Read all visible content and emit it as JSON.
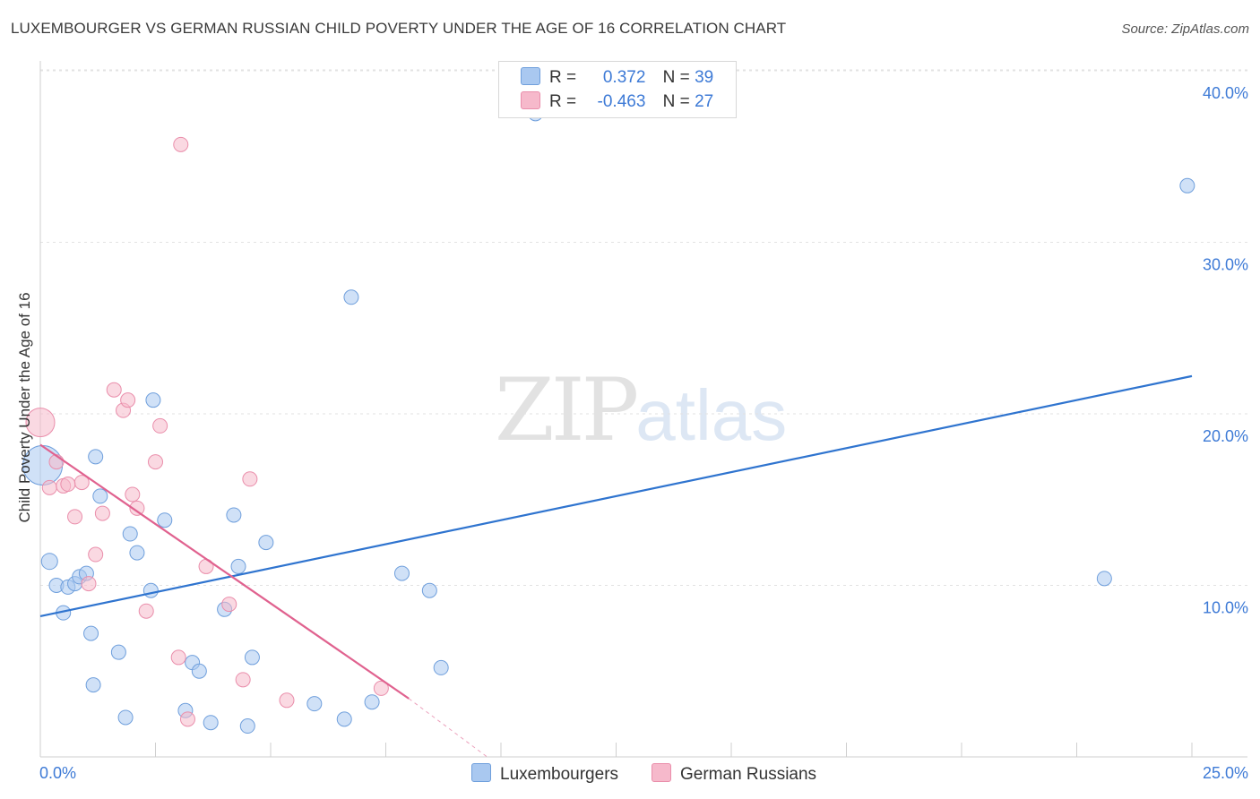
{
  "title": "LUXEMBOURGER VS GERMAN RUSSIAN CHILD POVERTY UNDER THE AGE OF 16 CORRELATION CHART",
  "source": "Source: ZipAtlas.com",
  "watermark": {
    "part1": "ZIP",
    "part2": "atlas"
  },
  "legend": {
    "rows": [
      {
        "r_label": "R =",
        "r_value": "0.372",
        "n_label": "N =",
        "n_value": "39",
        "color": "#a9c8f0"
      },
      {
        "r_label": "R =",
        "r_value": "-0.463",
        "n_label": "N =",
        "n_value": "27",
        "color": "#f6b9cb"
      }
    ]
  },
  "bottom_legend": [
    {
      "label": "Luxembourgers",
      "color": "#a9c8f0"
    },
    {
      "label": "German Russians",
      "color": "#f6b9cb"
    }
  ],
  "chart_data": {
    "type": "scatter",
    "title": "LUXEMBOURGER VS GERMAN RUSSIAN CHILD POVERTY UNDER THE AGE OF 16 CORRELATION CHART",
    "xlabel": "",
    "ylabel": "Child Poverty Under the Age of 16",
    "xlim": [
      0,
      25
    ],
    "ylim": [
      0,
      40
    ],
    "x_tick_labels": [
      "0.0%",
      "25.0%"
    ],
    "y_ticks": [
      10,
      20,
      30,
      40
    ],
    "y_tick_labels": [
      "10.0%",
      "20.0%",
      "30.0%",
      "40.0%"
    ],
    "grid": "horizontal dashed",
    "legend_position": "top-center",
    "series": [
      {
        "name": "Luxembourgers",
        "color": "#a9c8f0",
        "stroke": "#6f9fdc",
        "line_color": "#2f74cf",
        "trend": {
          "x": [
            0,
            25
          ],
          "y": [
            8.2,
            22.2
          ],
          "dashed_to": null
        },
        "points": [
          [
            0.05,
            17.0
          ],
          [
            0.2,
            11.4
          ],
          [
            0.35,
            10.0
          ],
          [
            0.5,
            8.4
          ],
          [
            0.6,
            9.9
          ],
          [
            0.75,
            10.1
          ],
          [
            0.85,
            10.5
          ],
          [
            1.0,
            10.7
          ],
          [
            1.1,
            7.2
          ],
          [
            1.2,
            17.5
          ],
          [
            1.3,
            15.2
          ],
          [
            1.15,
            4.2
          ],
          [
            1.7,
            6.1
          ],
          [
            1.85,
            2.3
          ],
          [
            1.95,
            13.0
          ],
          [
            2.1,
            11.9
          ],
          [
            2.4,
            9.7
          ],
          [
            2.45,
            20.8
          ],
          [
            2.7,
            13.8
          ],
          [
            3.15,
            2.7
          ],
          [
            3.3,
            5.5
          ],
          [
            3.45,
            5.0
          ],
          [
            3.7,
            2.0
          ],
          [
            4.0,
            8.6
          ],
          [
            4.2,
            14.1
          ],
          [
            4.3,
            11.1
          ],
          [
            4.5,
            1.8
          ],
          [
            4.6,
            5.8
          ],
          [
            4.9,
            12.5
          ],
          [
            5.95,
            3.1
          ],
          [
            6.6,
            2.2
          ],
          [
            6.75,
            26.8
          ],
          [
            7.2,
            3.2
          ],
          [
            7.85,
            10.7
          ],
          [
            8.45,
            9.7
          ],
          [
            8.7,
            5.2
          ],
          [
            10.75,
            37.5
          ],
          [
            23.1,
            10.4
          ],
          [
            24.9,
            33.3
          ]
        ],
        "point_sizes": [
          22,
          9,
          8,
          8,
          8,
          8,
          8,
          8,
          8,
          8,
          8,
          8,
          8,
          8,
          8,
          8,
          8,
          8,
          8,
          8,
          8,
          8,
          8,
          8,
          8,
          8,
          8,
          8,
          8,
          8,
          8,
          8,
          8,
          8,
          8,
          8,
          8,
          8,
          8
        ]
      },
      {
        "name": "German Russians",
        "color": "#f6b9cb",
        "stroke": "#ea8eab",
        "line_color": "#e0628f",
        "trend": {
          "x": [
            0,
            8.0
          ],
          "y": [
            18.2,
            3.4
          ],
          "dashed_to": [
            9.7,
            0
          ]
        },
        "points": [
          [
            0.0,
            19.5
          ],
          [
            0.2,
            15.7
          ],
          [
            0.35,
            17.2
          ],
          [
            0.5,
            15.8
          ],
          [
            0.75,
            14.0
          ],
          [
            0.9,
            16.0
          ],
          [
            0.6,
            15.9
          ],
          [
            1.05,
            10.1
          ],
          [
            1.2,
            11.8
          ],
          [
            1.35,
            14.2
          ],
          [
            1.6,
            21.4
          ],
          [
            1.8,
            20.2
          ],
          [
            1.9,
            20.8
          ],
          [
            2.0,
            15.3
          ],
          [
            2.1,
            14.5
          ],
          [
            2.3,
            8.5
          ],
          [
            2.5,
            17.2
          ],
          [
            2.6,
            19.3
          ],
          [
            3.05,
            35.7
          ],
          [
            3.0,
            5.8
          ],
          [
            3.2,
            2.2
          ],
          [
            3.6,
            11.1
          ],
          [
            4.1,
            8.9
          ],
          [
            4.4,
            4.5
          ],
          [
            4.55,
            16.2
          ],
          [
            5.35,
            3.3
          ],
          [
            7.4,
            4.0
          ]
        ],
        "point_sizes": [
          16,
          8,
          8,
          8,
          8,
          8,
          8,
          8,
          8,
          8,
          8,
          8,
          8,
          8,
          8,
          8,
          8,
          8,
          8,
          8,
          8,
          8,
          8,
          8,
          8,
          8,
          8
        ]
      }
    ]
  }
}
